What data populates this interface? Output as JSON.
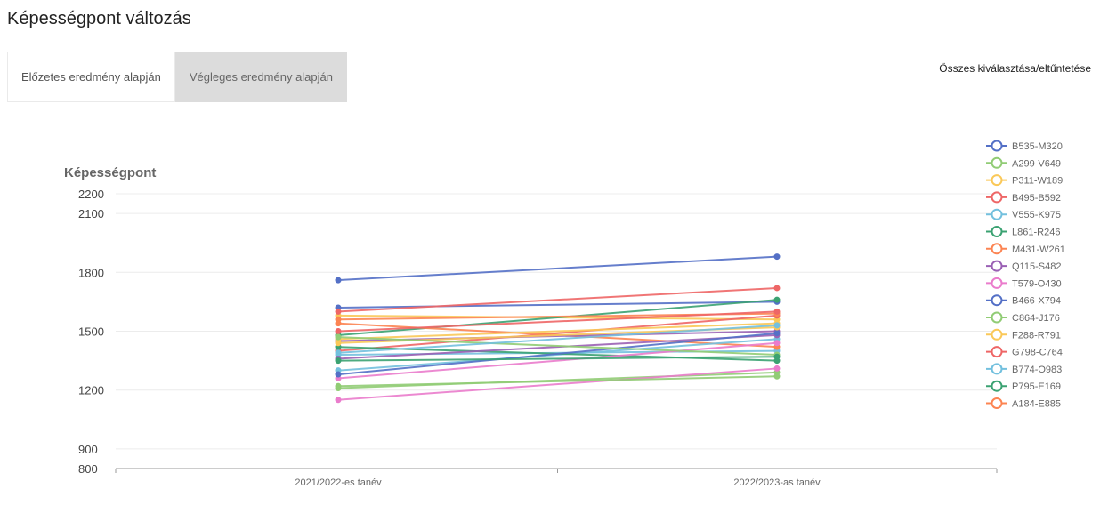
{
  "page": {
    "title": "Képességpont változás"
  },
  "tabs": [
    {
      "label": "Előzetes eredmény alapján",
      "active": true
    },
    {
      "label": "Végleges eredmény alapján",
      "active": false
    }
  ],
  "toggle_all_label": "Összes kiválasztása/eltűntetése",
  "chart_data": {
    "type": "line",
    "ylabel": "Képességpont",
    "categories": [
      "2021/2022-es tanév",
      "2022/2023-as tanév"
    ],
    "ylim": [
      800,
      2200
    ],
    "yticks": [
      800,
      900,
      1200,
      1500,
      1800,
      2100,
      2200
    ],
    "grid": true,
    "legend_position": "right",
    "series": [
      {
        "name": "B535-M320",
        "color": "#5470c6",
        "values": [
          1620,
          1650
        ]
      },
      {
        "name": "A299-V649",
        "color": "#91cc75",
        "values": [
          1210,
          1290
        ]
      },
      {
        "name": "P311-W189",
        "color": "#fac858",
        "values": [
          1580,
          1560
        ]
      },
      {
        "name": "B495-B592",
        "color": "#ee6666",
        "values": [
          1400,
          1580
        ]
      },
      {
        "name": "V555-K975",
        "color": "#73c0de",
        "values": [
          1380,
          1400
        ]
      },
      {
        "name": "L861-R246",
        "color": "#3ba272",
        "values": [
          1480,
          1660
        ]
      },
      {
        "name": "M431-W261",
        "color": "#fc8452",
        "values": [
          1540,
          1420
        ]
      },
      {
        "name": "Q115-S482",
        "color": "#9a60b4",
        "values": [
          1450,
          1500
        ]
      },
      {
        "name": "T579-O430",
        "color": "#ea7ccc",
        "values": [
          1150,
          1310
        ]
      },
      {
        "name": "B466-X794",
        "color": "#5470c6",
        "values": [
          1760,
          1880
        ]
      },
      {
        "name": "C864-J176",
        "color": "#91cc75",
        "values": [
          1220,
          1270
        ]
      },
      {
        "name": "F288-R791",
        "color": "#fac858",
        "values": [
          1460,
          1540
        ]
      },
      {
        "name": "G798-C764",
        "color": "#ee6666",
        "values": [
          1600,
          1720
        ]
      },
      {
        "name": "B774-O983",
        "color": "#73c0de",
        "values": [
          1300,
          1460
        ]
      },
      {
        "name": "P795-E169",
        "color": "#3ba272",
        "values": [
          1420,
          1350
        ]
      },
      {
        "name": "A184-E885",
        "color": "#fc8452",
        "values": [
          1560,
          1590
        ]
      },
      {
        "name": "",
        "color": "#9a60b4",
        "values": [
          1360,
          1480
        ]
      },
      {
        "name": "",
        "color": "#ea7ccc",
        "values": [
          1260,
          1440
        ]
      },
      {
        "name": "",
        "color": "#5470c6",
        "values": [
          1280,
          1490
        ]
      },
      {
        "name": "",
        "color": "#ee6666",
        "values": [
          1500,
          1600
        ]
      },
      {
        "name": "",
        "color": "#fac858",
        "values": [
          1440,
          1520
        ]
      },
      {
        "name": "",
        "color": "#91cc75",
        "values": [
          1470,
          1380
        ]
      },
      {
        "name": "",
        "color": "#73c0de",
        "values": [
          1390,
          1530
        ]
      },
      {
        "name": "",
        "color": "#3ba272",
        "values": [
          1350,
          1370
        ]
      }
    ]
  }
}
